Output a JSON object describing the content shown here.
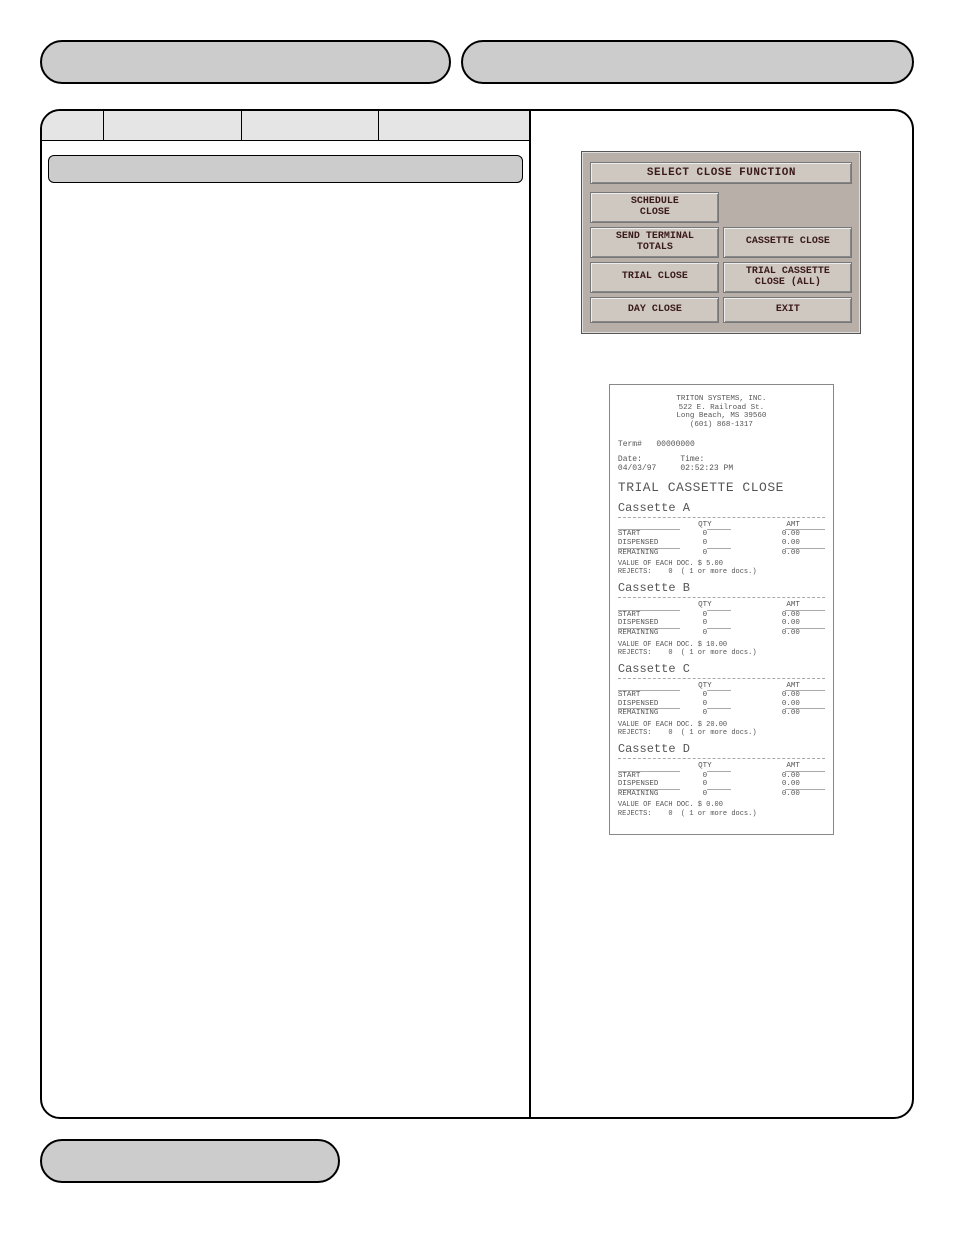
{
  "atm": {
    "title": "SELECT CLOSE FUNCTION",
    "buttons": {
      "schedule": "SCHEDULE\nCLOSE",
      "blank": "",
      "send_totals": "SEND TERMINAL\nTOTALS",
      "cassette_close": "CASSETTE CLOSE",
      "trial_close": "TRIAL CLOSE",
      "trial_cass_all": "TRIAL CASSETTE\nCLOSE (ALL)",
      "day_close": "DAY CLOSE",
      "exit": "EXIT"
    }
  },
  "receipt": {
    "header": {
      "l1": "TRITON SYSTEMS, INC.",
      "l2": "522 E. Railroad St.",
      "l3": "Long Beach, MS  39560",
      "l4": "(601) 868-1317"
    },
    "term_label": "Term#",
    "term_value": "00000000",
    "date_label": "Date:",
    "date_value": "04/03/97",
    "time_label": "Time:",
    "time_value": "02:52:23 PM",
    "title": "TRIAL CASSETTE CLOSE",
    "col_qty": "QTY",
    "col_amt": "AMT",
    "row_start": "START",
    "row_dispensed": "DISPENSED",
    "row_remaining": "REMAINING",
    "value_each_label": "VALUE OF EACH DOC. $",
    "rejects_label": "REJECTS:",
    "rejects_note": "( 1 or more docs.)",
    "cassettes": [
      {
        "name": "Cassette A",
        "start_qty": "0",
        "start_amt": "0.00",
        "disp_qty": "0",
        "disp_amt": "0.00",
        "rem_qty": "0",
        "rem_amt": "0.00",
        "value_each": "5.00",
        "rejects": "0"
      },
      {
        "name": "Cassette B",
        "start_qty": "0",
        "start_amt": "0.00",
        "disp_qty": "0",
        "disp_amt": "0.00",
        "rem_qty": "0",
        "rem_amt": "0.00",
        "value_each": "10.00",
        "rejects": "0"
      },
      {
        "name": "Cassette C",
        "start_qty": "0",
        "start_amt": "0.00",
        "disp_qty": "0",
        "disp_amt": "0.00",
        "rem_qty": "0",
        "rem_amt": "0.00",
        "value_each": "20.00",
        "rejects": "0"
      },
      {
        "name": "Cassette D",
        "start_qty": "0",
        "start_amt": "0.00",
        "disp_qty": "0",
        "disp_amt": "0.00",
        "rem_qty": "0",
        "rem_amt": "0.00",
        "value_each": "0.00",
        "rejects": "0"
      }
    ]
  },
  "colors": {
    "pill_bg": "#cccccc",
    "atm_bg": "#b8b0a8",
    "atm_btn_bg": "#cfc8c0",
    "atm_text": "#3a1a1a",
    "receipt_text": "#555555"
  }
}
